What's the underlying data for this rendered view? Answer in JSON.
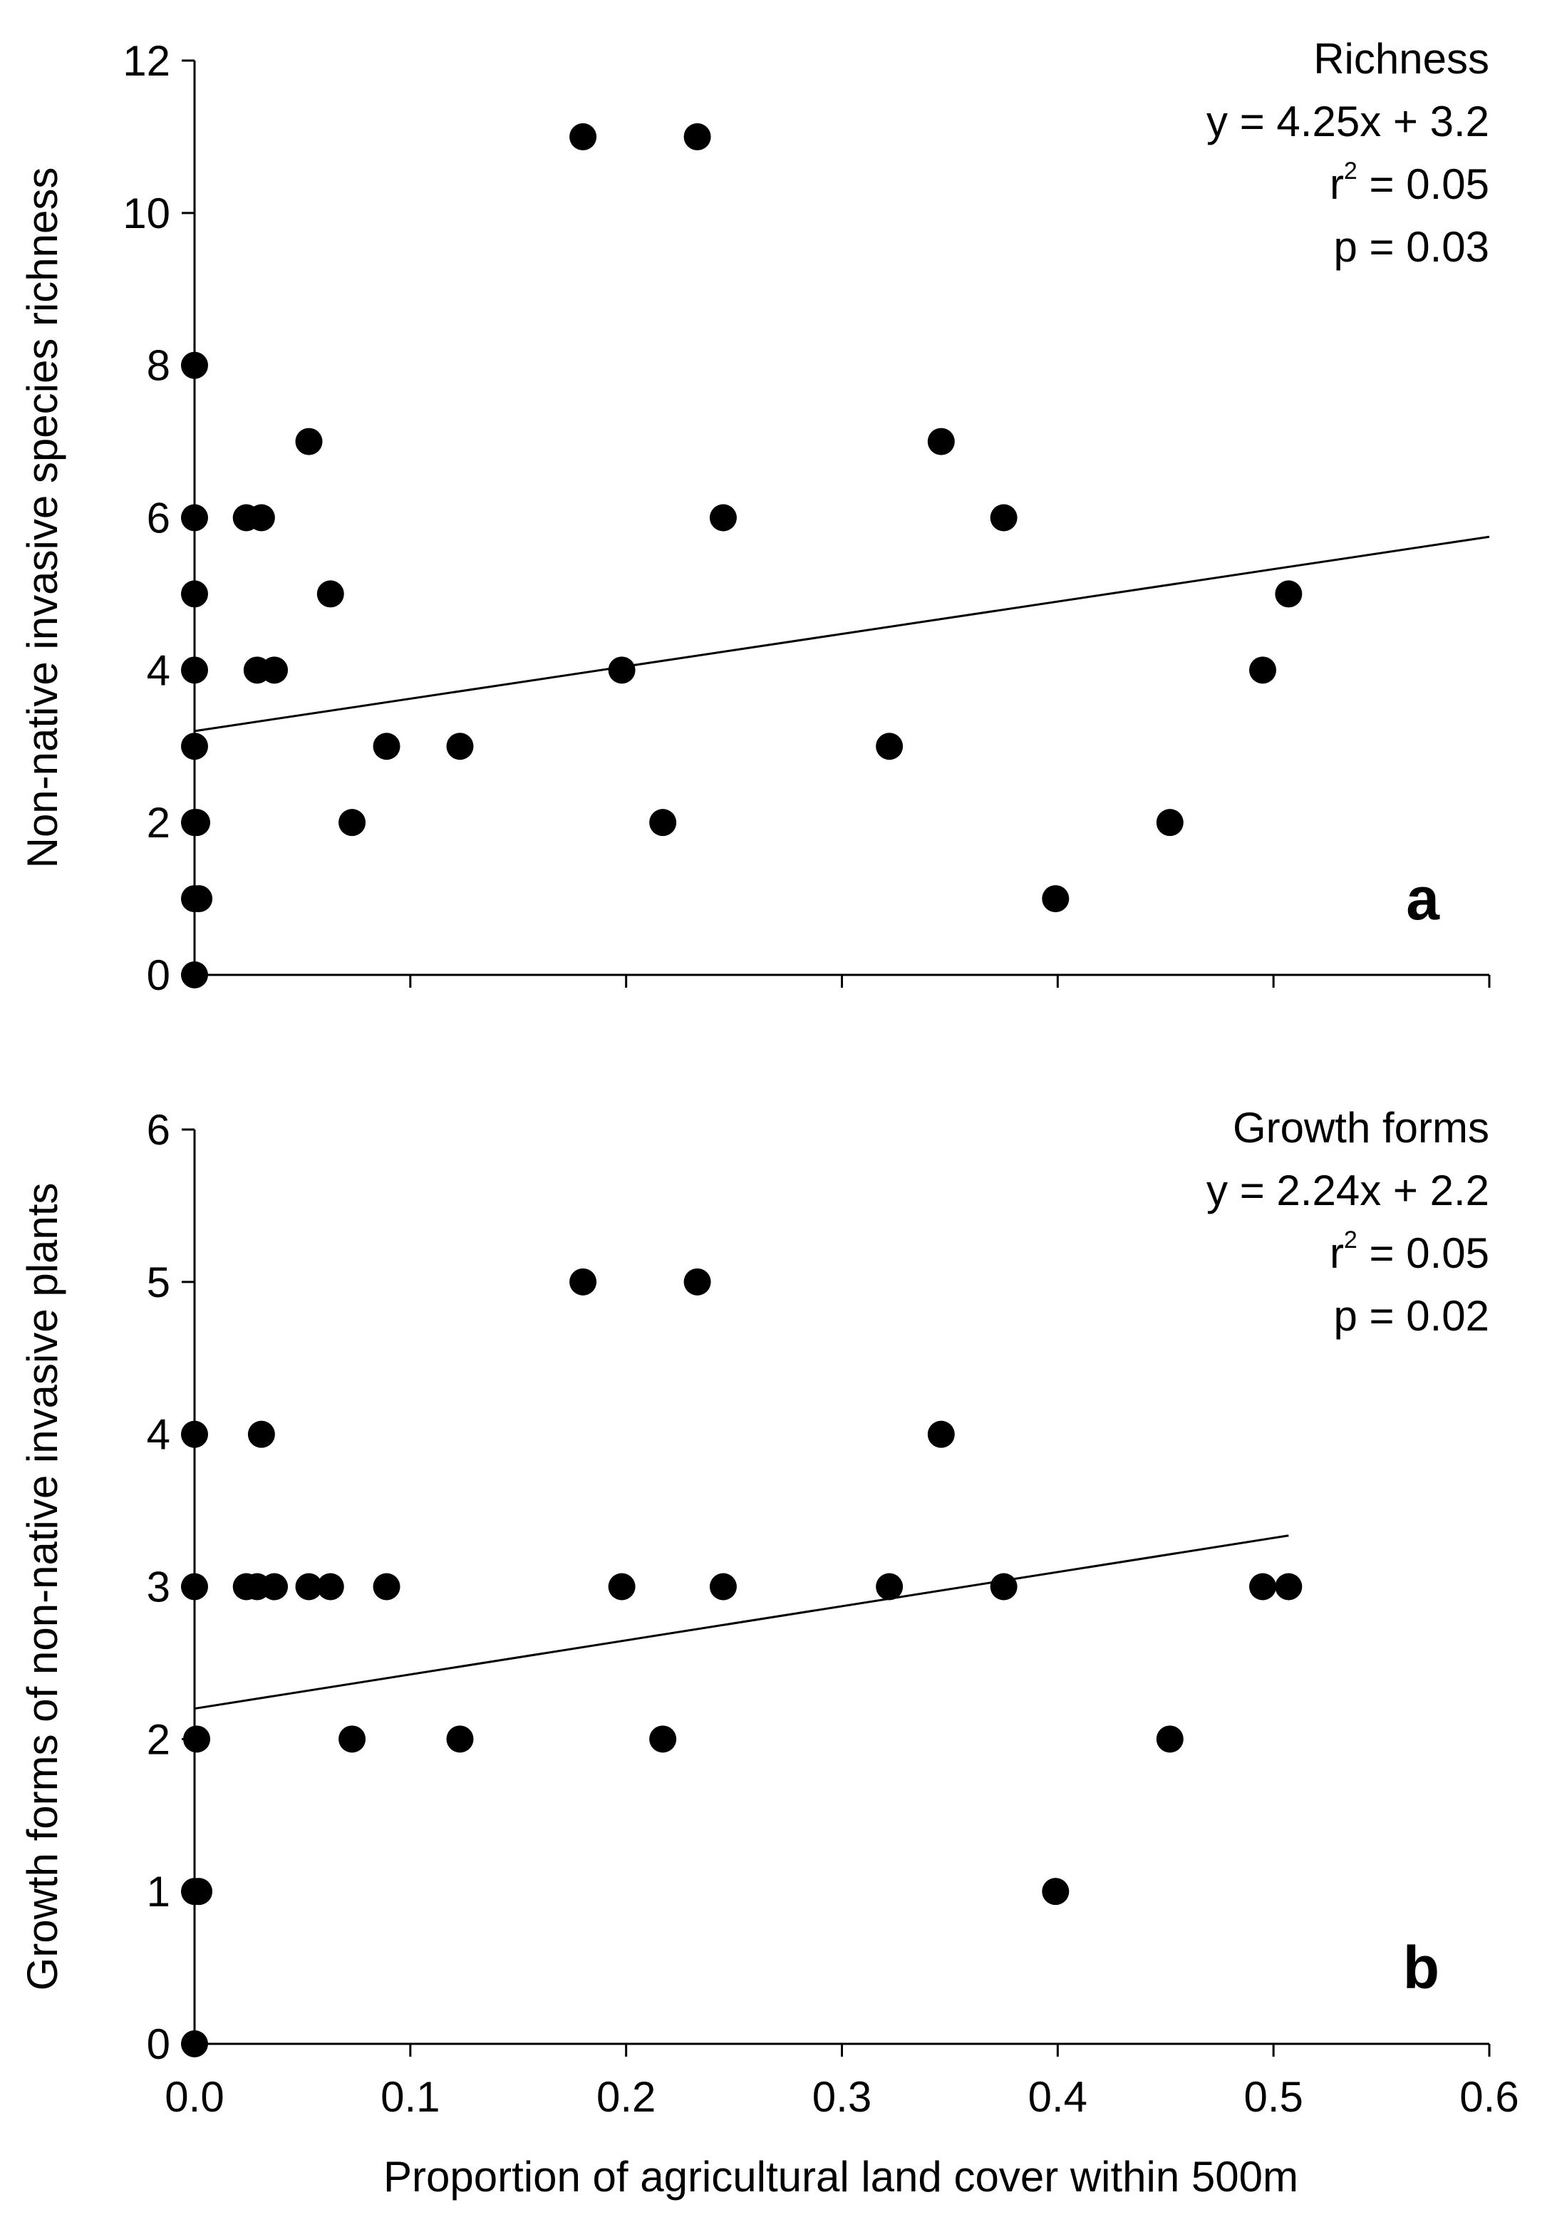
{
  "chart_data": [
    {
      "type": "scatter",
      "panel": "a",
      "title": "Richness",
      "equation": "y = 4.25x + 3.2",
      "r2_prefix": "r",
      "r2_sup": "2",
      "r2_value": " = 0.05",
      "p_text": "p = 0.03",
      "ylabel": "Non-native invasive species richness",
      "xlabel": "",
      "xlim": [
        0,
        0.6
      ],
      "ylim": [
        0,
        12
      ],
      "y_ticks": [
        0,
        2,
        4,
        6,
        8,
        10,
        12
      ],
      "y_tick_labels": [
        "0",
        "2",
        "4",
        "6",
        "8",
        "10",
        "12"
      ],
      "x_ticks": [
        0,
        0.1,
        0.2,
        0.3,
        0.4,
        0.5,
        0.6
      ],
      "x_tick_labels": [],
      "fit": {
        "slope": 4.25,
        "intercept": 3.2,
        "x_start": 0.0,
        "x_end": 0.6
      },
      "x": [
        0.0,
        0.0,
        0.0,
        0.0,
        0.0,
        0.0,
        0.001,
        0.002,
        0.0,
        0.0,
        0.024,
        0.031,
        0.029,
        0.037,
        0.053,
        0.063,
        0.073,
        0.089,
        0.123,
        0.18,
        0.198,
        0.217,
        0.233,
        0.245,
        0.322,
        0.346,
        0.375,
        0.399,
        0.452,
        0.495,
        0.507
      ],
      "y": [
        8,
        6,
        5,
        4,
        3,
        2,
        2,
        1,
        1,
        0,
        6,
        6,
        4,
        4,
        7,
        5,
        2,
        3,
        3,
        11,
        4,
        2,
        11,
        6,
        3,
        7,
        6,
        1,
        2,
        4,
        5
      ]
    },
    {
      "type": "scatter",
      "panel": "b",
      "title": "Growth forms",
      "equation": "y = 2.24x + 2.2",
      "r2_prefix": "r",
      "r2_sup": "2",
      "r2_value": " = 0.05",
      "p_text": "p = 0.02",
      "ylabel": "Growth forms of non-native invasive plants",
      "xlabel": "Proportion of agricultural land cover within 500m",
      "xlim": [
        0,
        0.6
      ],
      "ylim": [
        0,
        6
      ],
      "y_ticks": [
        0,
        1,
        2,
        3,
        4,
        5,
        6
      ],
      "y_tick_labels": [
        "0",
        "1",
        "2",
        "3",
        "4",
        "5",
        "6"
      ],
      "x_ticks": [
        0,
        0.1,
        0.2,
        0.3,
        0.4,
        0.5,
        0.6
      ],
      "x_tick_labels": [
        "0.0",
        "0.1",
        "0.2",
        "0.3",
        "0.4",
        "0.5",
        "0.6"
      ],
      "fit": {
        "slope": 2.24,
        "intercept": 2.2,
        "x_start": 0.0,
        "x_end": 0.507
      },
      "x": [
        0.0,
        0.0,
        0.001,
        0.0,
        0.002,
        0.0,
        0.031,
        0.024,
        0.029,
        0.037,
        0.053,
        0.063,
        0.089,
        0.073,
        0.123,
        0.18,
        0.198,
        0.217,
        0.233,
        0.245,
        0.322,
        0.346,
        0.375,
        0.399,
        0.452,
        0.495,
        0.507
      ],
      "y": [
        4,
        3,
        2,
        1,
        1,
        0,
        4,
        3,
        3,
        3,
        3,
        3,
        3,
        2,
        2,
        5,
        3,
        2,
        5,
        3,
        3,
        4,
        3,
        1,
        2,
        3,
        3
      ]
    }
  ]
}
